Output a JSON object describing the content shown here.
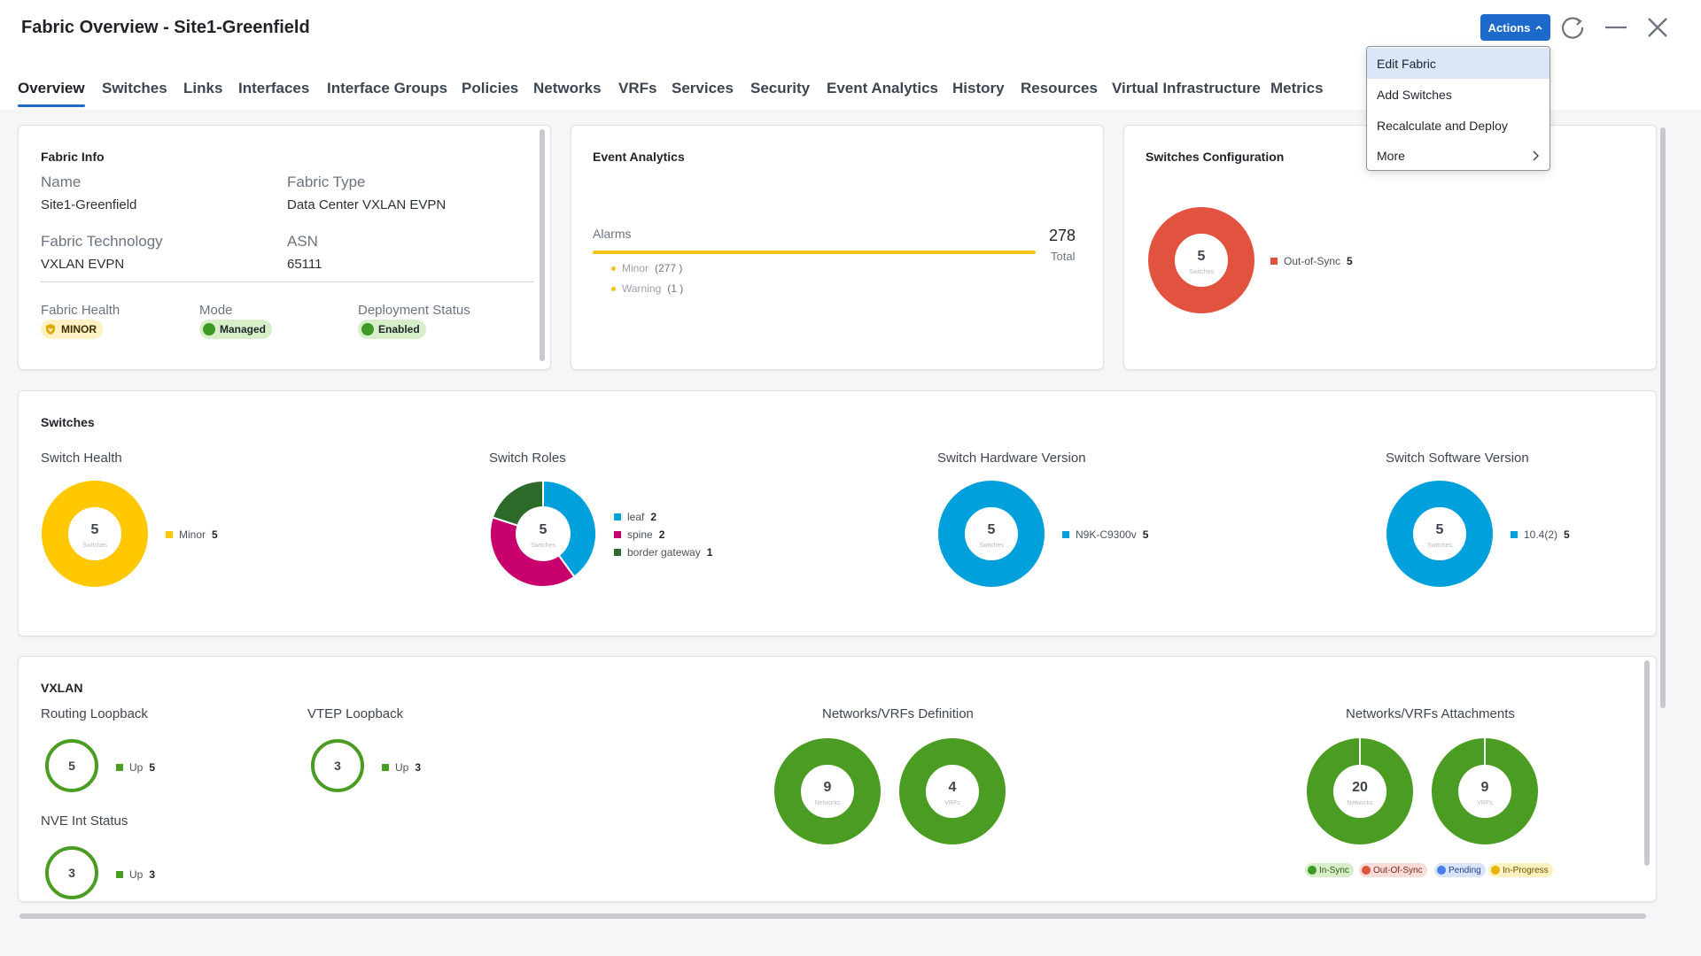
{
  "header": {
    "title": "Fabric Overview - Site1-Greenfield",
    "actions_label": "Actions"
  },
  "tabs": [
    "Overview",
    "Switches",
    "Links",
    "Interfaces",
    "Interface Groups",
    "Policies",
    "Networks",
    "VRFs",
    "Services",
    "Security",
    "Event Analytics",
    "History",
    "Resources",
    "Virtual Infrastructure",
    "Metrics"
  ],
  "actions_menu": [
    "Edit Fabric",
    "Add Switches",
    "Recalculate and Deploy",
    "More"
  ],
  "fabric_info": {
    "title": "Fabric Info",
    "name_label": "Name",
    "name": "Site1-Greenfield",
    "type_label": "Fabric Type",
    "type": "Data Center VXLAN EVPN",
    "tech_label": "Fabric Technology",
    "tech": "VXLAN EVPN",
    "asn_label": "ASN",
    "asn": "65111",
    "health_label": "Fabric Health",
    "health": "MINOR",
    "mode_label": "Mode",
    "mode": "Managed",
    "deploy_label": "Deployment Status",
    "deploy": "Enabled"
  },
  "event_analytics": {
    "title": "Event Analytics",
    "alarms_label": "Alarms",
    "total": "278",
    "total_label": "Total",
    "minor": "Minor",
    "minor_count": "(277 )",
    "warning": "Warning",
    "warning_count": "(1 )"
  },
  "switches_config": {
    "title": "Switches Configuration",
    "center": "5",
    "center_label": "Switches",
    "legend": "Out-of-Sync",
    "legend_count": "5"
  },
  "switches": {
    "title": "Switches",
    "health": {
      "label": "Switch Health",
      "center": "5",
      "center_label": "Switches",
      "legend": [
        {
          "name": "Minor",
          "count": "5"
        }
      ]
    },
    "roles": {
      "label": "Switch Roles",
      "center": "5",
      "center_label": "Switches",
      "legend": [
        {
          "name": "leaf",
          "count": "2"
        },
        {
          "name": "spine",
          "count": "2"
        },
        {
          "name": "border gateway",
          "count": "1"
        }
      ]
    },
    "hardware": {
      "label": "Switch Hardware Version",
      "center": "5",
      "center_label": "Switches",
      "legend": [
        {
          "name": "N9K-C9300v",
          "count": "5"
        }
      ]
    },
    "software": {
      "label": "Switch Software Version",
      "center": "5",
      "center_label": "Switches",
      "legend": [
        {
          "name": "10.4(2)",
          "count": "5"
        }
      ]
    }
  },
  "vxlan": {
    "title": "VXLAN",
    "routing": {
      "label": "Routing Loopback",
      "value": "5",
      "legend": "Up",
      "count": "5"
    },
    "vtep": {
      "label": "VTEP Loopback",
      "value": "3",
      "legend": "Up",
      "count": "3"
    },
    "nve": {
      "label": "NVE Int Status",
      "value": "3",
      "legend": "Up",
      "count": "3"
    },
    "definition": {
      "label": "Networks/VRFs Definition",
      "networks": "9",
      "networks_label": "Networks",
      "vrfs": "4",
      "vrfs_label": "VRFs"
    },
    "attachments": {
      "label": "Networks/VRFs Attachments",
      "networks": "20",
      "networks_label": "Networks",
      "vrfs": "9",
      "vrfs_label": "VRFs"
    },
    "status": [
      "In-Sync",
      "Out-Of-Sync",
      "Pending",
      "In-Progress"
    ]
  },
  "colors": {
    "accent": "#1d69cc",
    "yellow": "#ffc800",
    "red": "#e1533f",
    "blue": "#00a0dc",
    "magenta": "#c8006e",
    "darkgreen": "#2e6b2a",
    "green": "#4b9c23"
  },
  "chart_data": [
    {
      "type": "pie",
      "title": "Switches Configuration",
      "categories": [
        "Out-of-Sync"
      ],
      "values": [
        5
      ]
    },
    {
      "type": "pie",
      "title": "Switch Health",
      "categories": [
        "Minor"
      ],
      "values": [
        5
      ]
    },
    {
      "type": "pie",
      "title": "Switch Roles",
      "categories": [
        "leaf",
        "spine",
        "border gateway"
      ],
      "values": [
        2,
        2,
        1
      ]
    },
    {
      "type": "pie",
      "title": "Switch Hardware Version",
      "categories": [
        "N9K-C9300v"
      ],
      "values": [
        5
      ]
    },
    {
      "type": "pie",
      "title": "Switch Software Version",
      "categories": [
        "10.4(2)"
      ],
      "values": [
        5
      ]
    },
    {
      "type": "bar",
      "title": "Alarms",
      "categories": [
        "Minor",
        "Warning"
      ],
      "values": [
        277,
        1
      ]
    }
  ]
}
